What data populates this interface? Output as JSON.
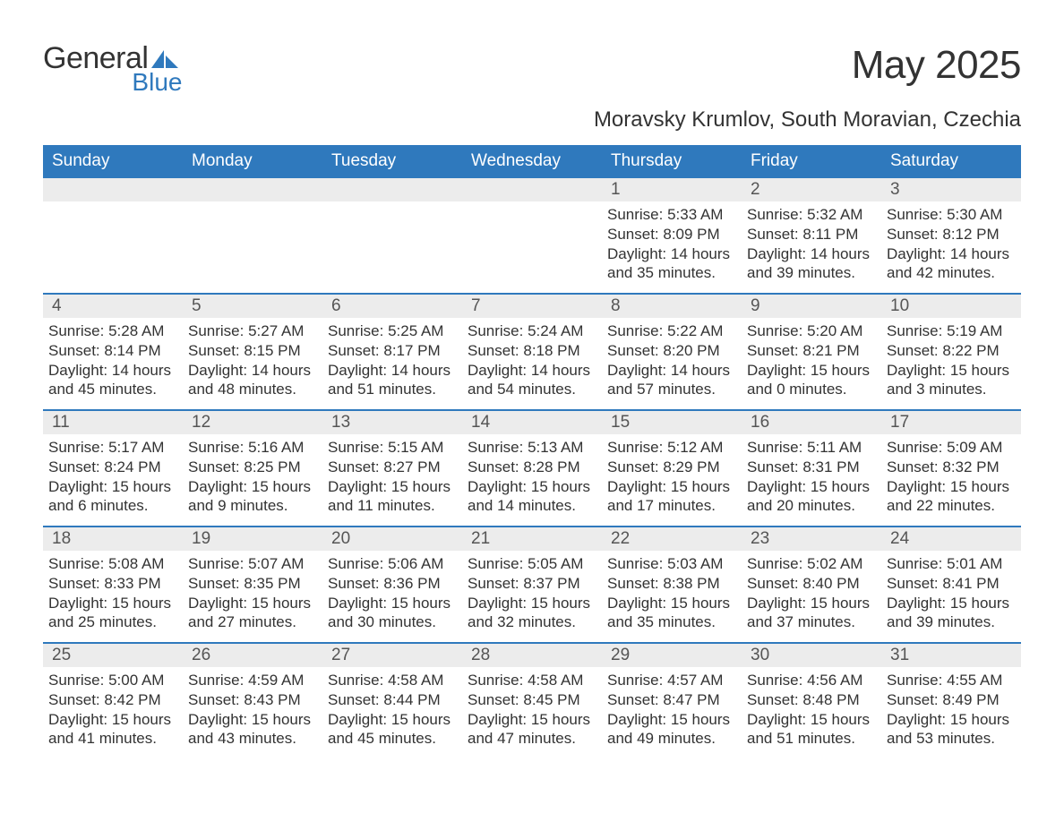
{
  "brand": {
    "text_general": "General",
    "text_blue": "Blue"
  },
  "title": "May 2025",
  "location": "Moravsky Krumlov, South Moravian, Czechia",
  "colors": {
    "header_bg": "#2f79bd",
    "header_fg": "#ffffff",
    "daynum_bg": "#ececec",
    "text": "#333333",
    "rule": "#2f79bd",
    "page_bg": "#ffffff"
  },
  "typography": {
    "title_fontsize": 44,
    "location_fontsize": 24,
    "weekday_fontsize": 19,
    "daynum_fontsize": 19,
    "body_fontsize": 17
  },
  "weekdays": [
    "Sunday",
    "Monday",
    "Tuesday",
    "Wednesday",
    "Thursday",
    "Friday",
    "Saturday"
  ],
  "weeks": [
    [
      {
        "day": "",
        "sunrise": "",
        "sunset": "",
        "daylight": ""
      },
      {
        "day": "",
        "sunrise": "",
        "sunset": "",
        "daylight": ""
      },
      {
        "day": "",
        "sunrise": "",
        "sunset": "",
        "daylight": ""
      },
      {
        "day": "",
        "sunrise": "",
        "sunset": "",
        "daylight": ""
      },
      {
        "day": "1",
        "sunrise": "Sunrise: 5:33 AM",
        "sunset": "Sunset: 8:09 PM",
        "daylight": "Daylight: 14 hours and 35 minutes."
      },
      {
        "day": "2",
        "sunrise": "Sunrise: 5:32 AM",
        "sunset": "Sunset: 8:11 PM",
        "daylight": "Daylight: 14 hours and 39 minutes."
      },
      {
        "day": "3",
        "sunrise": "Sunrise: 5:30 AM",
        "sunset": "Sunset: 8:12 PM",
        "daylight": "Daylight: 14 hours and 42 minutes."
      }
    ],
    [
      {
        "day": "4",
        "sunrise": "Sunrise: 5:28 AM",
        "sunset": "Sunset: 8:14 PM",
        "daylight": "Daylight: 14 hours and 45 minutes."
      },
      {
        "day": "5",
        "sunrise": "Sunrise: 5:27 AM",
        "sunset": "Sunset: 8:15 PM",
        "daylight": "Daylight: 14 hours and 48 minutes."
      },
      {
        "day": "6",
        "sunrise": "Sunrise: 5:25 AM",
        "sunset": "Sunset: 8:17 PM",
        "daylight": "Daylight: 14 hours and 51 minutes."
      },
      {
        "day": "7",
        "sunrise": "Sunrise: 5:24 AM",
        "sunset": "Sunset: 8:18 PM",
        "daylight": "Daylight: 14 hours and 54 minutes."
      },
      {
        "day": "8",
        "sunrise": "Sunrise: 5:22 AM",
        "sunset": "Sunset: 8:20 PM",
        "daylight": "Daylight: 14 hours and 57 minutes."
      },
      {
        "day": "9",
        "sunrise": "Sunrise: 5:20 AM",
        "sunset": "Sunset: 8:21 PM",
        "daylight": "Daylight: 15 hours and 0 minutes."
      },
      {
        "day": "10",
        "sunrise": "Sunrise: 5:19 AM",
        "sunset": "Sunset: 8:22 PM",
        "daylight": "Daylight: 15 hours and 3 minutes."
      }
    ],
    [
      {
        "day": "11",
        "sunrise": "Sunrise: 5:17 AM",
        "sunset": "Sunset: 8:24 PM",
        "daylight": "Daylight: 15 hours and 6 minutes."
      },
      {
        "day": "12",
        "sunrise": "Sunrise: 5:16 AM",
        "sunset": "Sunset: 8:25 PM",
        "daylight": "Daylight: 15 hours and 9 minutes."
      },
      {
        "day": "13",
        "sunrise": "Sunrise: 5:15 AM",
        "sunset": "Sunset: 8:27 PM",
        "daylight": "Daylight: 15 hours and 11 minutes."
      },
      {
        "day": "14",
        "sunrise": "Sunrise: 5:13 AM",
        "sunset": "Sunset: 8:28 PM",
        "daylight": "Daylight: 15 hours and 14 minutes."
      },
      {
        "day": "15",
        "sunrise": "Sunrise: 5:12 AM",
        "sunset": "Sunset: 8:29 PM",
        "daylight": "Daylight: 15 hours and 17 minutes."
      },
      {
        "day": "16",
        "sunrise": "Sunrise: 5:11 AM",
        "sunset": "Sunset: 8:31 PM",
        "daylight": "Daylight: 15 hours and 20 minutes."
      },
      {
        "day": "17",
        "sunrise": "Sunrise: 5:09 AM",
        "sunset": "Sunset: 8:32 PM",
        "daylight": "Daylight: 15 hours and 22 minutes."
      }
    ],
    [
      {
        "day": "18",
        "sunrise": "Sunrise: 5:08 AM",
        "sunset": "Sunset: 8:33 PM",
        "daylight": "Daylight: 15 hours and 25 minutes."
      },
      {
        "day": "19",
        "sunrise": "Sunrise: 5:07 AM",
        "sunset": "Sunset: 8:35 PM",
        "daylight": "Daylight: 15 hours and 27 minutes."
      },
      {
        "day": "20",
        "sunrise": "Sunrise: 5:06 AM",
        "sunset": "Sunset: 8:36 PM",
        "daylight": "Daylight: 15 hours and 30 minutes."
      },
      {
        "day": "21",
        "sunrise": "Sunrise: 5:05 AM",
        "sunset": "Sunset: 8:37 PM",
        "daylight": "Daylight: 15 hours and 32 minutes."
      },
      {
        "day": "22",
        "sunrise": "Sunrise: 5:03 AM",
        "sunset": "Sunset: 8:38 PM",
        "daylight": "Daylight: 15 hours and 35 minutes."
      },
      {
        "day": "23",
        "sunrise": "Sunrise: 5:02 AM",
        "sunset": "Sunset: 8:40 PM",
        "daylight": "Daylight: 15 hours and 37 minutes."
      },
      {
        "day": "24",
        "sunrise": "Sunrise: 5:01 AM",
        "sunset": "Sunset: 8:41 PM",
        "daylight": "Daylight: 15 hours and 39 minutes."
      }
    ],
    [
      {
        "day": "25",
        "sunrise": "Sunrise: 5:00 AM",
        "sunset": "Sunset: 8:42 PM",
        "daylight": "Daylight: 15 hours and 41 minutes."
      },
      {
        "day": "26",
        "sunrise": "Sunrise: 4:59 AM",
        "sunset": "Sunset: 8:43 PM",
        "daylight": "Daylight: 15 hours and 43 minutes."
      },
      {
        "day": "27",
        "sunrise": "Sunrise: 4:58 AM",
        "sunset": "Sunset: 8:44 PM",
        "daylight": "Daylight: 15 hours and 45 minutes."
      },
      {
        "day": "28",
        "sunrise": "Sunrise: 4:58 AM",
        "sunset": "Sunset: 8:45 PM",
        "daylight": "Daylight: 15 hours and 47 minutes."
      },
      {
        "day": "29",
        "sunrise": "Sunrise: 4:57 AM",
        "sunset": "Sunset: 8:47 PM",
        "daylight": "Daylight: 15 hours and 49 minutes."
      },
      {
        "day": "30",
        "sunrise": "Sunrise: 4:56 AM",
        "sunset": "Sunset: 8:48 PM",
        "daylight": "Daylight: 15 hours and 51 minutes."
      },
      {
        "day": "31",
        "sunrise": "Sunrise: 4:55 AM",
        "sunset": "Sunset: 8:49 PM",
        "daylight": "Daylight: 15 hours and 53 minutes."
      }
    ]
  ]
}
